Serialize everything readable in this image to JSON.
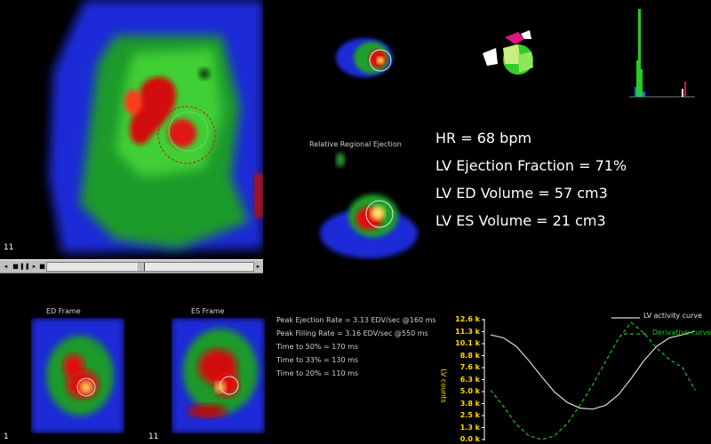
{
  "main_view": {
    "frame_number": "11"
  },
  "player": {
    "prev_icon": "◂",
    "stop_icon": "■",
    "pause_icon": "❚❚",
    "play_icon": "▸",
    "loop_icon": "■",
    "scroll_left_icon": "◂",
    "scroll_right_icon": "▸",
    "position_fraction": 0.45
  },
  "overlay_label": "Relative Regional Ejection",
  "results": {
    "hr": "HR = 68 bpm",
    "ef": "LV Ejection Fraction = 71%",
    "edv": "LV ED Volume = 57 cm3",
    "esv": "LV ES Volume = 21 cm3"
  },
  "thumbnails": {
    "ed": {
      "title": "ED Frame",
      "frame_number": "1"
    },
    "es": {
      "title": "ES Frame",
      "frame_number": "11"
    }
  },
  "parameters": [
    "Peak Ejection Rate = 3.13 EDV/sec @160 ms",
    "Peak Filling Rate = 3.16 EDV/sec @550 ms",
    "Time to 50% = 170 ms",
    "Time to 33% = 130 ms",
    "Time to 20% = 110 ms"
  ],
  "colors": {
    "activity_curve": "#d8d8d8",
    "derivative_curve": "#19c419",
    "tick_labels": "#ffd800"
  },
  "chart_data": {
    "type": "line",
    "ylabel": "LV counts",
    "yticks": [
      "12.6 k",
      "11.3 k",
      "10.1 k",
      "8.8 k",
      "7.6 k",
      "6.3 k",
      "5.0 k",
      "3.8 k",
      "2.5 k",
      "1.3 k",
      "0.0 k"
    ],
    "ylim": [
      0,
      12.6
    ],
    "xlim": [
      0,
      16
    ],
    "series": [
      {
        "name": "LV activity curve",
        "style": "solid",
        "x": [
          0,
          1,
          2,
          3,
          4,
          5,
          6,
          7,
          8,
          9,
          10,
          11,
          12,
          13,
          14,
          15,
          16
        ],
        "values": [
          11.0,
          10.7,
          9.8,
          8.3,
          6.6,
          5.0,
          3.9,
          3.3,
          3.2,
          3.6,
          4.7,
          6.4,
          8.3,
          9.8,
          10.7,
          11.0,
          11.4
        ]
      },
      {
        "name": "Derivative curve",
        "style": "dashed",
        "x": [
          0,
          1,
          2,
          3,
          4,
          5,
          6,
          7,
          8,
          9,
          10,
          11,
          12,
          13,
          14,
          15,
          16
        ],
        "values": [
          5.2,
          3.5,
          1.6,
          0.4,
          0.0,
          0.4,
          1.7,
          3.6,
          5.8,
          8.2,
          10.6,
          12.3,
          11.2,
          9.6,
          8.4,
          7.6,
          5.2
        ]
      }
    ],
    "legend": "top-right"
  }
}
